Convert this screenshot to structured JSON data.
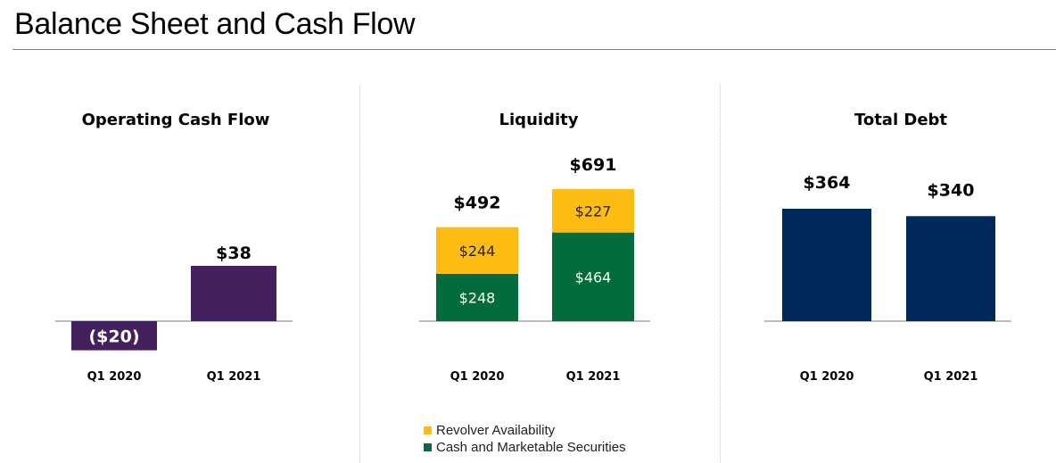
{
  "page": {
    "title": "Balance Sheet and Cash Flow"
  },
  "colors": {
    "operating": "#45205f",
    "revolver": "#fdbc12",
    "cash": "#046c3c",
    "debt": "#00285a",
    "axis": "#a6a6a6"
  },
  "legend": {
    "items": [
      {
        "label": "Revolver Availability",
        "color": "#fdbc12"
      },
      {
        "label": "Cash and Marketable Securities",
        "color": "#046c3c"
      }
    ]
  },
  "chart_data": [
    {
      "type": "bar",
      "title": "Operating Cash Flow",
      "categories": [
        "Q1 2020",
        "Q1 2021"
      ],
      "values": [
        -20,
        38
      ],
      "labels": [
        "($20)",
        "$38"
      ],
      "ylim": [
        -20,
        38
      ],
      "grid": false,
      "legend": "none"
    },
    {
      "type": "bar",
      "stacked": true,
      "title": "Liquidity",
      "categories": [
        "Q1 2020",
        "Q1 2021"
      ],
      "series": [
        {
          "name": "Cash and Marketable Securities",
          "values": [
            248,
            464
          ],
          "labels": [
            "$248",
            "$464"
          ]
        },
        {
          "name": "Revolver Availability",
          "values": [
            244,
            227
          ],
          "labels": [
            "$244",
            "$227"
          ]
        }
      ],
      "totals": [
        492,
        691
      ],
      "total_labels": [
        "$492",
        "$691"
      ],
      "ylim": [
        0,
        691
      ],
      "grid": false,
      "legend": "bottom"
    },
    {
      "type": "bar",
      "title": "Total Debt",
      "categories": [
        "Q1 2020",
        "Q1 2021"
      ],
      "values": [
        364,
        340
      ],
      "labels": [
        "$364",
        "$340"
      ],
      "ylim": [
        0,
        364
      ],
      "grid": false,
      "legend": "none"
    }
  ]
}
